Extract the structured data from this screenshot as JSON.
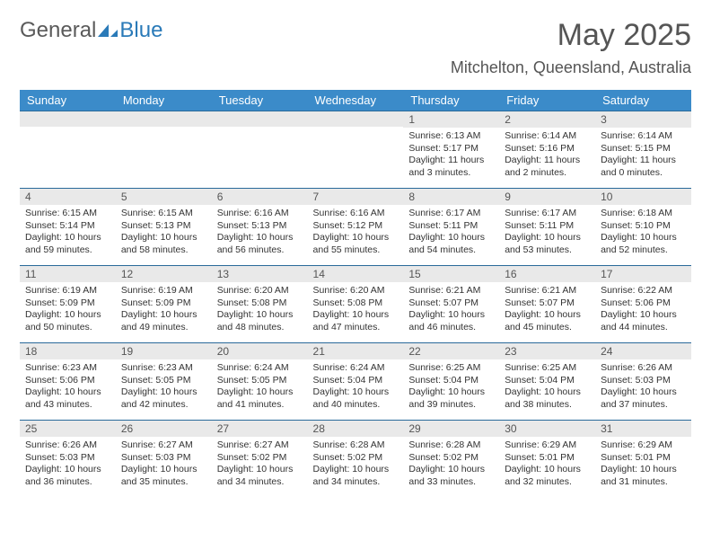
{
  "logo": {
    "part1": "General",
    "part2": "Blue"
  },
  "title": "May 2025",
  "location": "Mitchelton, Queensland, Australia",
  "columns": [
    "Sunday",
    "Monday",
    "Tuesday",
    "Wednesday",
    "Thursday",
    "Friday",
    "Saturday"
  ],
  "colors": {
    "header_bg": "#3b8bc9",
    "header_text": "#ffffff",
    "row_border": "#2a6a9a",
    "daynum_bg": "#e9e9e9",
    "logo_blue": "#2a7ab8",
    "logo_gray": "#5a5a5a"
  },
  "typography": {
    "title_fontsize": 34,
    "location_fontsize": 18,
    "dayhead_fontsize": 13,
    "daynum_fontsize": 12,
    "body_fontsize": 10.5
  },
  "weeks": [
    [
      {
        "n": "",
        "sr": "",
        "ss": "",
        "dl": ""
      },
      {
        "n": "",
        "sr": "",
        "ss": "",
        "dl": ""
      },
      {
        "n": "",
        "sr": "",
        "ss": "",
        "dl": ""
      },
      {
        "n": "",
        "sr": "",
        "ss": "",
        "dl": ""
      },
      {
        "n": "1",
        "sr": "Sunrise: 6:13 AM",
        "ss": "Sunset: 5:17 PM",
        "dl": "Daylight: 11 hours and 3 minutes."
      },
      {
        "n": "2",
        "sr": "Sunrise: 6:14 AM",
        "ss": "Sunset: 5:16 PM",
        "dl": "Daylight: 11 hours and 2 minutes."
      },
      {
        "n": "3",
        "sr": "Sunrise: 6:14 AM",
        "ss": "Sunset: 5:15 PM",
        "dl": "Daylight: 11 hours and 0 minutes."
      }
    ],
    [
      {
        "n": "4",
        "sr": "Sunrise: 6:15 AM",
        "ss": "Sunset: 5:14 PM",
        "dl": "Daylight: 10 hours and 59 minutes."
      },
      {
        "n": "5",
        "sr": "Sunrise: 6:15 AM",
        "ss": "Sunset: 5:13 PM",
        "dl": "Daylight: 10 hours and 58 minutes."
      },
      {
        "n": "6",
        "sr": "Sunrise: 6:16 AM",
        "ss": "Sunset: 5:13 PM",
        "dl": "Daylight: 10 hours and 56 minutes."
      },
      {
        "n": "7",
        "sr": "Sunrise: 6:16 AM",
        "ss": "Sunset: 5:12 PM",
        "dl": "Daylight: 10 hours and 55 minutes."
      },
      {
        "n": "8",
        "sr": "Sunrise: 6:17 AM",
        "ss": "Sunset: 5:11 PM",
        "dl": "Daylight: 10 hours and 54 minutes."
      },
      {
        "n": "9",
        "sr": "Sunrise: 6:17 AM",
        "ss": "Sunset: 5:11 PM",
        "dl": "Daylight: 10 hours and 53 minutes."
      },
      {
        "n": "10",
        "sr": "Sunrise: 6:18 AM",
        "ss": "Sunset: 5:10 PM",
        "dl": "Daylight: 10 hours and 52 minutes."
      }
    ],
    [
      {
        "n": "11",
        "sr": "Sunrise: 6:19 AM",
        "ss": "Sunset: 5:09 PM",
        "dl": "Daylight: 10 hours and 50 minutes."
      },
      {
        "n": "12",
        "sr": "Sunrise: 6:19 AM",
        "ss": "Sunset: 5:09 PM",
        "dl": "Daylight: 10 hours and 49 minutes."
      },
      {
        "n": "13",
        "sr": "Sunrise: 6:20 AM",
        "ss": "Sunset: 5:08 PM",
        "dl": "Daylight: 10 hours and 48 minutes."
      },
      {
        "n": "14",
        "sr": "Sunrise: 6:20 AM",
        "ss": "Sunset: 5:08 PM",
        "dl": "Daylight: 10 hours and 47 minutes."
      },
      {
        "n": "15",
        "sr": "Sunrise: 6:21 AM",
        "ss": "Sunset: 5:07 PM",
        "dl": "Daylight: 10 hours and 46 minutes."
      },
      {
        "n": "16",
        "sr": "Sunrise: 6:21 AM",
        "ss": "Sunset: 5:07 PM",
        "dl": "Daylight: 10 hours and 45 minutes."
      },
      {
        "n": "17",
        "sr": "Sunrise: 6:22 AM",
        "ss": "Sunset: 5:06 PM",
        "dl": "Daylight: 10 hours and 44 minutes."
      }
    ],
    [
      {
        "n": "18",
        "sr": "Sunrise: 6:23 AM",
        "ss": "Sunset: 5:06 PM",
        "dl": "Daylight: 10 hours and 43 minutes."
      },
      {
        "n": "19",
        "sr": "Sunrise: 6:23 AM",
        "ss": "Sunset: 5:05 PM",
        "dl": "Daylight: 10 hours and 42 minutes."
      },
      {
        "n": "20",
        "sr": "Sunrise: 6:24 AM",
        "ss": "Sunset: 5:05 PM",
        "dl": "Daylight: 10 hours and 41 minutes."
      },
      {
        "n": "21",
        "sr": "Sunrise: 6:24 AM",
        "ss": "Sunset: 5:04 PM",
        "dl": "Daylight: 10 hours and 40 minutes."
      },
      {
        "n": "22",
        "sr": "Sunrise: 6:25 AM",
        "ss": "Sunset: 5:04 PM",
        "dl": "Daylight: 10 hours and 39 minutes."
      },
      {
        "n": "23",
        "sr": "Sunrise: 6:25 AM",
        "ss": "Sunset: 5:04 PM",
        "dl": "Daylight: 10 hours and 38 minutes."
      },
      {
        "n": "24",
        "sr": "Sunrise: 6:26 AM",
        "ss": "Sunset: 5:03 PM",
        "dl": "Daylight: 10 hours and 37 minutes."
      }
    ],
    [
      {
        "n": "25",
        "sr": "Sunrise: 6:26 AM",
        "ss": "Sunset: 5:03 PM",
        "dl": "Daylight: 10 hours and 36 minutes."
      },
      {
        "n": "26",
        "sr": "Sunrise: 6:27 AM",
        "ss": "Sunset: 5:03 PM",
        "dl": "Daylight: 10 hours and 35 minutes."
      },
      {
        "n": "27",
        "sr": "Sunrise: 6:27 AM",
        "ss": "Sunset: 5:02 PM",
        "dl": "Daylight: 10 hours and 34 minutes."
      },
      {
        "n": "28",
        "sr": "Sunrise: 6:28 AM",
        "ss": "Sunset: 5:02 PM",
        "dl": "Daylight: 10 hours and 34 minutes."
      },
      {
        "n": "29",
        "sr": "Sunrise: 6:28 AM",
        "ss": "Sunset: 5:02 PM",
        "dl": "Daylight: 10 hours and 33 minutes."
      },
      {
        "n": "30",
        "sr": "Sunrise: 6:29 AM",
        "ss": "Sunset: 5:01 PM",
        "dl": "Daylight: 10 hours and 32 minutes."
      },
      {
        "n": "31",
        "sr": "Sunrise: 6:29 AM",
        "ss": "Sunset: 5:01 PM",
        "dl": "Daylight: 10 hours and 31 minutes."
      }
    ]
  ]
}
